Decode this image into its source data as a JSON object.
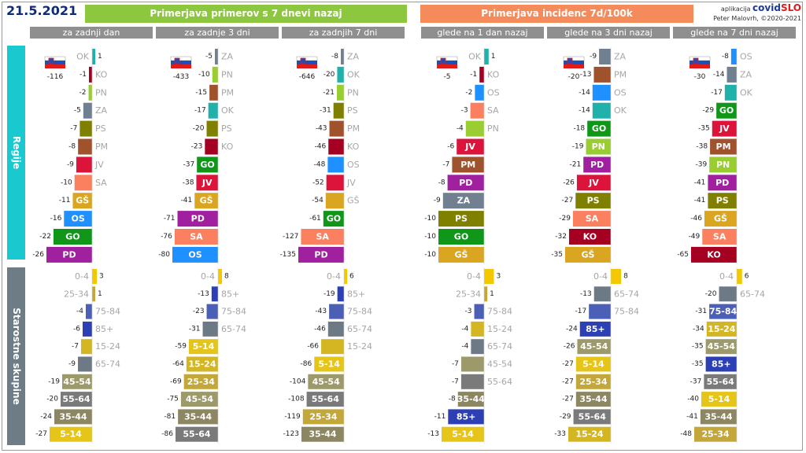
{
  "header": {
    "date": "21.5.2021",
    "left_title": "Primerjava primerov s 7 dnevi nazaj",
    "right_title": "Primerjava incidenc 7d/100k",
    "app_prefix": "aplikacija",
    "app_name_a": "covid",
    "app_name_b": "SLO",
    "author": "Peter Malovrh, ©2020-2021"
  },
  "sections": {
    "regions": "Regije",
    "age_groups": "Starostne skupine"
  },
  "colors": {
    "header_green": "#8dc63f",
    "header_orange": "#f58b5a",
    "sidebar_cyan": "#1ac8cf",
    "sidebar_gray": "#6e7c86",
    "column_header": "#8f8f8f",
    "label_gray": "#a6a6a6"
  },
  "chart_data": [
    {
      "type": "bar",
      "panel": "cases",
      "title": "za zadnji dan",
      "national": -116,
      "regions": [
        {
          "name": "OK",
          "value": 1,
          "color": "#20b2aa"
        },
        {
          "name": "KO",
          "value": -1,
          "color": "#a50021"
        },
        {
          "name": "PN",
          "value": -2,
          "color": "#9acd32"
        },
        {
          "name": "ZA",
          "value": -5,
          "color": "#708090"
        },
        {
          "name": "PS",
          "value": -7,
          "color": "#808000"
        },
        {
          "name": "PM",
          "value": -8,
          "color": "#a0522d"
        },
        {
          "name": "JV",
          "value": -9,
          "color": "#dc143c"
        },
        {
          "name": "SA",
          "value": -10,
          "color": "#fa8060"
        },
        {
          "name": "GŠ",
          "value": -11,
          "color": "#daa520"
        },
        {
          "name": "OS",
          "value": -16,
          "color": "#1e90ff"
        },
        {
          "name": "GO",
          "value": -22,
          "color": "#109618"
        },
        {
          "name": "PD",
          "value": -26,
          "color": "#a020a0"
        }
      ],
      "ages": [
        {
          "name": "0-4",
          "value": 3,
          "color": "#f2c800"
        },
        {
          "name": "25-34",
          "value": 1,
          "color": "#c4a73a"
        },
        {
          "name": "75-84",
          "value": -4,
          "color": "#4a5fb5"
        },
        {
          "name": "85+",
          "value": -6,
          "color": "#2c3fb5"
        },
        {
          "name": "15-24",
          "value": -7,
          "color": "#d4b623"
        },
        {
          "name": "65-74",
          "value": -9,
          "color": "#6d7a85"
        },
        {
          "name": "45-54",
          "value": -19,
          "color": "#9c9a6a"
        },
        {
          "name": "55-64",
          "value": -20,
          "color": "#7a7a7a"
        },
        {
          "name": "35-44",
          "value": -24,
          "color": "#8c8662"
        },
        {
          "name": "5-14",
          "value": -27,
          "color": "#e6c51a"
        }
      ]
    },
    {
      "type": "bar",
      "panel": "cases",
      "title": "za zadnje 3 dni",
      "national": -433,
      "regions": [
        {
          "name": "ZA",
          "value": -5,
          "color": "#708090"
        },
        {
          "name": "PN",
          "value": -10,
          "color": "#9acd32"
        },
        {
          "name": "PM",
          "value": -15,
          "color": "#a0522d"
        },
        {
          "name": "OK",
          "value": -17,
          "color": "#20b2aa"
        },
        {
          "name": "PS",
          "value": -20,
          "color": "#808000"
        },
        {
          "name": "KO",
          "value": -23,
          "color": "#a50021"
        },
        {
          "name": "GO",
          "value": -37,
          "color": "#109618"
        },
        {
          "name": "JV",
          "value": -38,
          "color": "#dc143c"
        },
        {
          "name": "GŠ",
          "value": -41,
          "color": "#daa520"
        },
        {
          "name": "PD",
          "value": -71,
          "color": "#a020a0"
        },
        {
          "name": "SA",
          "value": -76,
          "color": "#fa8060"
        },
        {
          "name": "OS",
          "value": -80,
          "color": "#1e90ff"
        }
      ],
      "ages": [
        {
          "name": "0-4",
          "value": 8,
          "color": "#f2c800"
        },
        {
          "name": "85+",
          "value": -13,
          "color": "#2c3fb5"
        },
        {
          "name": "75-84",
          "value": -23,
          "color": "#4a5fb5"
        },
        {
          "name": "65-74",
          "value": -31,
          "color": "#6d7a85"
        },
        {
          "name": "5-14",
          "value": -59,
          "color": "#e6c51a"
        },
        {
          "name": "15-24",
          "value": -64,
          "color": "#d4b623"
        },
        {
          "name": "25-34",
          "value": -69,
          "color": "#c4a73a"
        },
        {
          "name": "45-54",
          "value": -75,
          "color": "#9c9a6a"
        },
        {
          "name": "35-44",
          "value": -81,
          "color": "#8c8662"
        },
        {
          "name": "55-64",
          "value": -86,
          "color": "#7a7a7a"
        }
      ]
    },
    {
      "type": "bar",
      "panel": "cases",
      "title": "za zadnjih 7 dni",
      "national": -646,
      "regions": [
        {
          "name": "ZA",
          "value": -8,
          "color": "#708090"
        },
        {
          "name": "OK",
          "value": -20,
          "color": "#20b2aa"
        },
        {
          "name": "PN",
          "value": -21,
          "color": "#9acd32"
        },
        {
          "name": "PS",
          "value": -31,
          "color": "#808000"
        },
        {
          "name": "PM",
          "value": -43,
          "color": "#a0522d"
        },
        {
          "name": "KO",
          "value": -46,
          "color": "#a50021"
        },
        {
          "name": "OS",
          "value": -48,
          "color": "#1e90ff"
        },
        {
          "name": "JV",
          "value": -52,
          "color": "#dc143c"
        },
        {
          "name": "GŠ",
          "value": -54,
          "color": "#daa520"
        },
        {
          "name": "GO",
          "value": -61,
          "color": "#109618"
        },
        {
          "name": "SA",
          "value": -127,
          "color": "#fa8060"
        },
        {
          "name": "PD",
          "value": -135,
          "color": "#a020a0"
        }
      ],
      "ages": [
        {
          "name": "0-4",
          "value": 6,
          "color": "#f2c800"
        },
        {
          "name": "85+",
          "value": -19,
          "color": "#2c3fb5"
        },
        {
          "name": "75-84",
          "value": -43,
          "color": "#4a5fb5"
        },
        {
          "name": "65-74",
          "value": -46,
          "color": "#6d7a85"
        },
        {
          "name": "15-24",
          "value": -66,
          "color": "#d4b623"
        },
        {
          "name": "5-14",
          "value": -86,
          "color": "#e6c51a"
        },
        {
          "name": "45-54",
          "value": -104,
          "color": "#9c9a6a"
        },
        {
          "name": "55-64",
          "value": -108,
          "color": "#7a7a7a"
        },
        {
          "name": "25-34",
          "value": -119,
          "color": "#c4a73a"
        },
        {
          "name": "35-44",
          "value": -123,
          "color": "#8c8662"
        }
      ]
    },
    {
      "type": "bar",
      "panel": "incidence",
      "title": "glede na 1 dan nazaj",
      "national": -5,
      "regions": [
        {
          "name": "OK",
          "value": 1,
          "color": "#20b2aa"
        },
        {
          "name": "KO",
          "value": -1,
          "color": "#a50021"
        },
        {
          "name": "OS",
          "value": -2,
          "color": "#1e90ff"
        },
        {
          "name": "SA",
          "value": -3,
          "color": "#fa8060"
        },
        {
          "name": "PN",
          "value": -4,
          "color": "#9acd32"
        },
        {
          "name": "JV",
          "value": -6,
          "color": "#dc143c"
        },
        {
          "name": "PM",
          "value": -7,
          "color": "#a0522d"
        },
        {
          "name": "PD",
          "value": -8,
          "color": "#a020a0"
        },
        {
          "name": "ZA",
          "value": -9,
          "color": "#708090"
        },
        {
          "name": "PS",
          "value": -10,
          "color": "#808000"
        },
        {
          "name": "GO",
          "value": -10,
          "color": "#109618"
        },
        {
          "name": "GŠ",
          "value": -10,
          "color": "#daa520"
        }
      ],
      "ages": [
        {
          "name": "0-4",
          "value": 3,
          "color": "#f2c800"
        },
        {
          "name": "25-34",
          "value": 1,
          "color": "#c4a73a"
        },
        {
          "name": "75-84",
          "value": -3,
          "color": "#4a5fb5"
        },
        {
          "name": "15-24",
          "value": -4,
          "color": "#d4b623"
        },
        {
          "name": "65-74",
          "value": -4,
          "color": "#6d7a85"
        },
        {
          "name": "45-54",
          "value": -7,
          "color": "#9c9a6a"
        },
        {
          "name": "55-64",
          "value": -7,
          "color": "#7a7a7a"
        },
        {
          "name": "35-44",
          "value": -8,
          "color": "#8c8662"
        },
        {
          "name": "85+",
          "value": -11,
          "color": "#2c3fb5"
        },
        {
          "name": "5-14",
          "value": -13,
          "color": "#e6c51a"
        }
      ]
    },
    {
      "type": "bar",
      "panel": "incidence",
      "title": "glede na 3 dni nazaj",
      "national": -20,
      "regions": [
        {
          "name": "ZA",
          "value": -9,
          "color": "#708090"
        },
        {
          "name": "PM",
          "value": -13,
          "color": "#a0522d"
        },
        {
          "name": "OS",
          "value": -14,
          "color": "#1e90ff"
        },
        {
          "name": "OK",
          "value": -14,
          "color": "#20b2aa"
        },
        {
          "name": "GO",
          "value": -18,
          "color": "#109618"
        },
        {
          "name": "PN",
          "value": -19,
          "color": "#9acd32"
        },
        {
          "name": "PD",
          "value": -21,
          "color": "#a020a0"
        },
        {
          "name": "JV",
          "value": -26,
          "color": "#dc143c"
        },
        {
          "name": "PS",
          "value": -27,
          "color": "#808000"
        },
        {
          "name": "SA",
          "value": -29,
          "color": "#fa8060"
        },
        {
          "name": "KO",
          "value": -32,
          "color": "#a50021"
        },
        {
          "name": "GŠ",
          "value": -35,
          "color": "#daa520"
        }
      ],
      "ages": [
        {
          "name": "0-4",
          "value": 8,
          "color": "#f2c800"
        },
        {
          "name": "65-74",
          "value": -13,
          "color": "#6d7a85"
        },
        {
          "name": "75-84",
          "value": -17,
          "color": "#4a5fb5"
        },
        {
          "name": "85+",
          "value": -24,
          "color": "#2c3fb5"
        },
        {
          "name": "45-54",
          "value": -26,
          "color": "#9c9a6a"
        },
        {
          "name": "5-14",
          "value": -27,
          "color": "#e6c51a"
        },
        {
          "name": "25-34",
          "value": -27,
          "color": "#c4a73a"
        },
        {
          "name": "35-44",
          "value": -27,
          "color": "#8c8662"
        },
        {
          "name": "55-64",
          "value": -29,
          "color": "#7a7a7a"
        },
        {
          "name": "15-24",
          "value": -33,
          "color": "#d4b623"
        }
      ]
    },
    {
      "type": "bar",
      "panel": "incidence",
      "title": "glede na 7 dni nazaj",
      "national": -30,
      "regions": [
        {
          "name": "OS",
          "value": -8,
          "color": "#1e90ff"
        },
        {
          "name": "ZA",
          "value": -14,
          "color": "#708090"
        },
        {
          "name": "OK",
          "value": -17,
          "color": "#20b2aa"
        },
        {
          "name": "GO",
          "value": -29,
          "color": "#109618"
        },
        {
          "name": "JV",
          "value": -35,
          "color": "#dc143c"
        },
        {
          "name": "PM",
          "value": -38,
          "color": "#a0522d"
        },
        {
          "name": "PN",
          "value": -39,
          "color": "#9acd32"
        },
        {
          "name": "PD",
          "value": -41,
          "color": "#a020a0"
        },
        {
          "name": "PS",
          "value": -41,
          "color": "#808000"
        },
        {
          "name": "GŠ",
          "value": -46,
          "color": "#daa520"
        },
        {
          "name": "SA",
          "value": -49,
          "color": "#fa8060"
        },
        {
          "name": "KO",
          "value": -65,
          "color": "#a50021"
        }
      ],
      "ages": [
        {
          "name": "0-4",
          "value": 6,
          "color": "#f2c800"
        },
        {
          "name": "65-74",
          "value": -20,
          "color": "#6d7a85"
        },
        {
          "name": "75-84",
          "value": -31,
          "color": "#4a5fb5"
        },
        {
          "name": "15-24",
          "value": -34,
          "color": "#d4b623"
        },
        {
          "name": "45-54",
          "value": -35,
          "color": "#9c9a6a"
        },
        {
          "name": "85+",
          "value": -35,
          "color": "#2c3fb5"
        },
        {
          "name": "55-64",
          "value": -37,
          "color": "#7a7a7a"
        },
        {
          "name": "5-14",
          "value": -40,
          "color": "#e6c51a"
        },
        {
          "name": "35-44",
          "value": -41,
          "color": "#8c8662"
        },
        {
          "name": "25-34",
          "value": -48,
          "color": "#c4a73a"
        }
      ]
    }
  ]
}
